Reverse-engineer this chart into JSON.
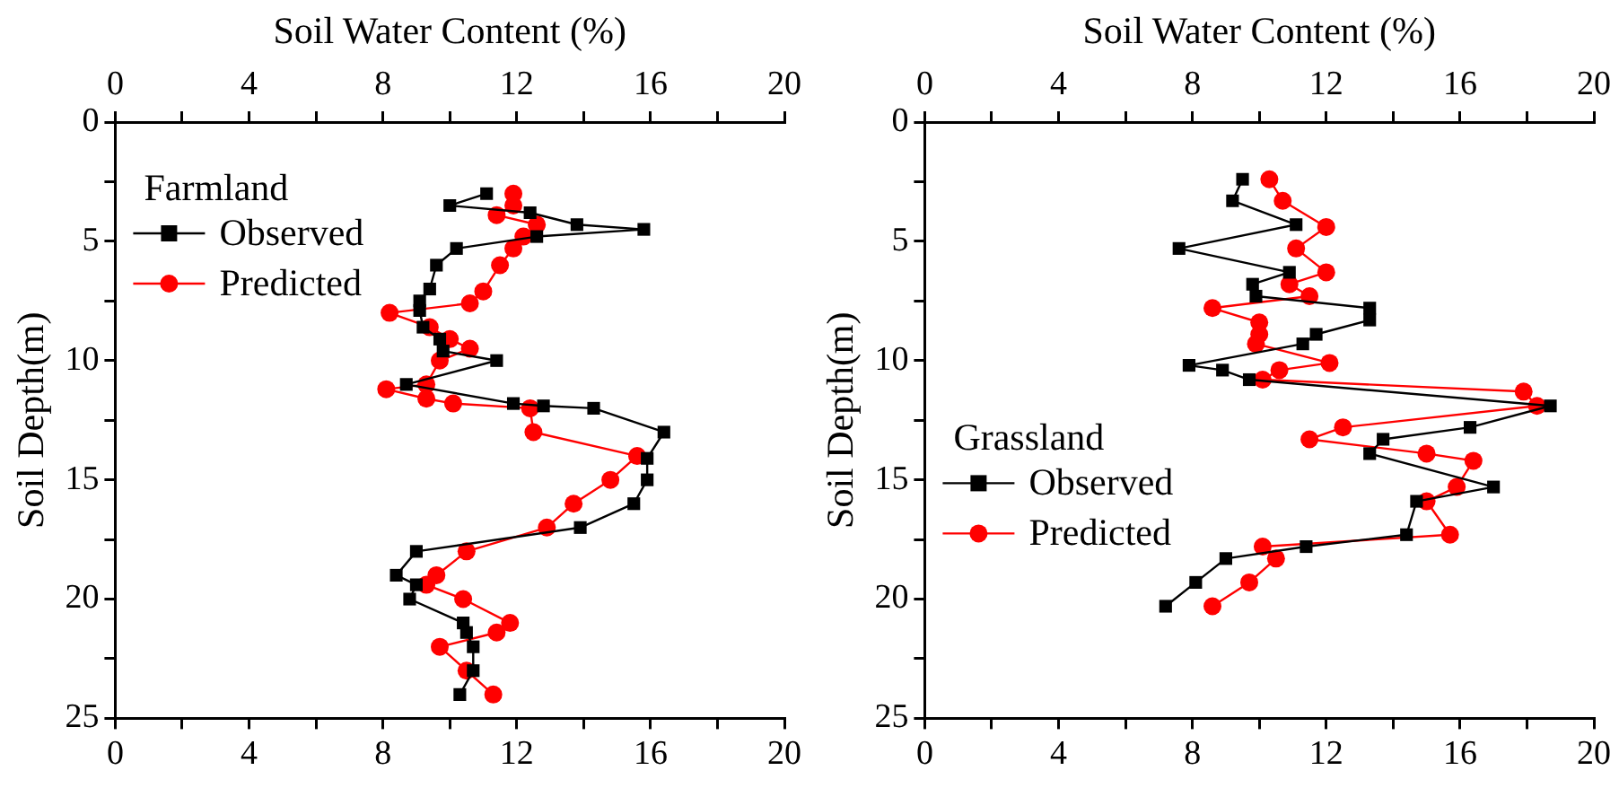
{
  "chart_data": [
    {
      "type": "line",
      "x2label": "Soil Water Content (%)",
      "ylabel": "Soil Depth(m)",
      "legend_title": "Farmland",
      "legend": "top left",
      "grid": false,
      "xlim": [
        0,
        20
      ],
      "xticks": [
        0,
        {
          "value": 2,
          "label": null
        },
        4,
        {
          "value": 6,
          "label": null
        },
        8,
        {
          "value": 10,
          "label": null
        },
        12,
        {
          "value": 14,
          "label": null
        },
        16,
        {
          "value": 18,
          "label": null
        },
        20
      ],
      "x2lim": [
        0,
        20
      ],
      "x2ticks": [
        0,
        {
          "value": 2,
          "label": null
        },
        4,
        {
          "value": 6,
          "label": null
        },
        8,
        {
          "value": 10,
          "label": null
        },
        12,
        {
          "value": 14,
          "label": null
        },
        16,
        {
          "value": 18,
          "label": null
        },
        20
      ],
      "ylim": [
        25,
        0
      ],
      "yticks": [
        0,
        {
          "value": 2.5,
          "label": null
        },
        5,
        {
          "value": 7.5,
          "label": null
        },
        10,
        {
          "value": 12.5,
          "label": null
        },
        15,
        {
          "value": 17.5,
          "label": null
        },
        20,
        {
          "value": 22.5,
          "label": null
        },
        25
      ],
      "series": [
        {
          "name": "Observed",
          "color": "#000000",
          "marker": "square",
          "x": [
            11.1,
            10.0,
            12.4,
            13.8,
            15.8,
            12.6,
            10.2,
            9.6,
            9.4,
            9.1,
            9.1,
            9.2,
            9.7,
            9.8,
            11.4,
            8.7,
            11.9,
            12.8,
            14.3,
            16.4,
            15.9,
            15.9,
            15.5,
            13.9,
            9.0,
            8.4,
            9.0,
            8.8,
            10.4,
            10.5,
            10.7,
            10.7,
            10.3
          ],
          "values": [
            3.0,
            3.5,
            3.8,
            4.3,
            4.5,
            4.8,
            5.3,
            6.0,
            7.0,
            7.5,
            7.9,
            8.6,
            9.1,
            9.6,
            10.0,
            11.0,
            11.8,
            11.9,
            12.0,
            13.0,
            14.1,
            15.0,
            16.0,
            17.0,
            18.0,
            19.0,
            19.4,
            20.0,
            21.0,
            21.4,
            22.0,
            23.0,
            24.0
          ]
        },
        {
          "name": "Predicted",
          "color": "#ff0000",
          "marker": "circle",
          "x": [
            11.9,
            11.9,
            11.4,
            12.6,
            12.2,
            11.9,
            11.5,
            11.0,
            10.6,
            8.2,
            9.4,
            10.0,
            10.6,
            9.7,
            9.3,
            8.1,
            9.3,
            10.1,
            12.4,
            12.5,
            15.6,
            14.8,
            13.7,
            12.9,
            10.5,
            9.6,
            9.3,
            10.4,
            11.8,
            11.4,
            9.7,
            10.5,
            11.3
          ],
          "values": [
            3.0,
            3.5,
            3.9,
            4.3,
            4.8,
            5.3,
            6.0,
            7.1,
            7.6,
            8.0,
            8.6,
            9.1,
            9.5,
            10.0,
            11.0,
            11.2,
            11.6,
            11.8,
            12.0,
            13.0,
            14.0,
            15.0,
            16.0,
            17.0,
            18.0,
            19.0,
            19.4,
            20.0,
            21.0,
            21.4,
            22.0,
            23.0,
            24.0
          ]
        }
      ]
    },
    {
      "type": "line",
      "x2label": "Soil Water Content (%)",
      "ylabel": "Soil Depth(m)",
      "legend_title": "Grassland",
      "legend": "bottom left",
      "grid": false,
      "xlim": [
        0,
        20
      ],
      "xticks": [
        0,
        {
          "value": 2,
          "label": null
        },
        4,
        {
          "value": 6,
          "label": null
        },
        8,
        {
          "value": 10,
          "label": null
        },
        12,
        {
          "value": 14,
          "label": null
        },
        16,
        {
          "value": 18,
          "label": null
        },
        20
      ],
      "x2lim": [
        0,
        20
      ],
      "x2ticks": [
        0,
        {
          "value": 2,
          "label": null
        },
        4,
        {
          "value": 6,
          "label": null
        },
        8,
        {
          "value": 10,
          "label": null
        },
        12,
        {
          "value": 14,
          "label": null
        },
        16,
        {
          "value": 18,
          "label": null
        },
        20
      ],
      "ylim": [
        25,
        0
      ],
      "yticks": [
        0,
        {
          "value": 2.5,
          "label": null
        },
        5,
        {
          "value": 7.5,
          "label": null
        },
        10,
        {
          "value": 12.5,
          "label": null
        },
        15,
        {
          "value": 17.5,
          "label": null
        },
        20,
        {
          "value": 22.5,
          "label": null
        },
        25
      ],
      "series": [
        {
          "name": "Observed",
          "color": "#000000",
          "marker": "square",
          "x": [
            9.5,
            9.2,
            11.1,
            7.6,
            10.9,
            9.8,
            9.9,
            13.3,
            13.3,
            11.7,
            11.3,
            7.9,
            8.9,
            9.7,
            18.7,
            16.3,
            13.7,
            13.3,
            17.0,
            14.7,
            14.4,
            11.4,
            9.0,
            8.1,
            7.2
          ],
          "values": [
            2.4,
            3.3,
            4.3,
            5.3,
            6.3,
            6.8,
            7.3,
            7.8,
            8.3,
            8.9,
            9.3,
            10.2,
            10.4,
            10.8,
            11.9,
            12.8,
            13.3,
            13.9,
            15.3,
            15.9,
            17.3,
            17.8,
            18.3,
            19.3,
            20.3
          ]
        },
        {
          "name": "Predicted",
          "color": "#ff0000",
          "marker": "circle",
          "x": [
            10.3,
            10.7,
            12.0,
            11.1,
            12.0,
            10.9,
            11.5,
            8.6,
            10.0,
            10.0,
            9.9,
            12.1,
            10.6,
            10.1,
            17.9,
            18.3,
            12.5,
            11.5,
            15.0,
            16.4,
            15.9,
            15.0,
            15.7,
            10.1,
            10.5,
            9.7,
            8.6
          ],
          "values": [
            2.4,
            3.3,
            4.4,
            5.3,
            6.3,
            6.8,
            7.3,
            7.8,
            8.4,
            8.9,
            9.3,
            10.1,
            10.4,
            10.8,
            11.3,
            11.9,
            12.8,
            13.3,
            13.9,
            14.2,
            15.3,
            15.9,
            17.3,
            17.8,
            18.3,
            19.3,
            20.3
          ]
        }
      ]
    }
  ]
}
